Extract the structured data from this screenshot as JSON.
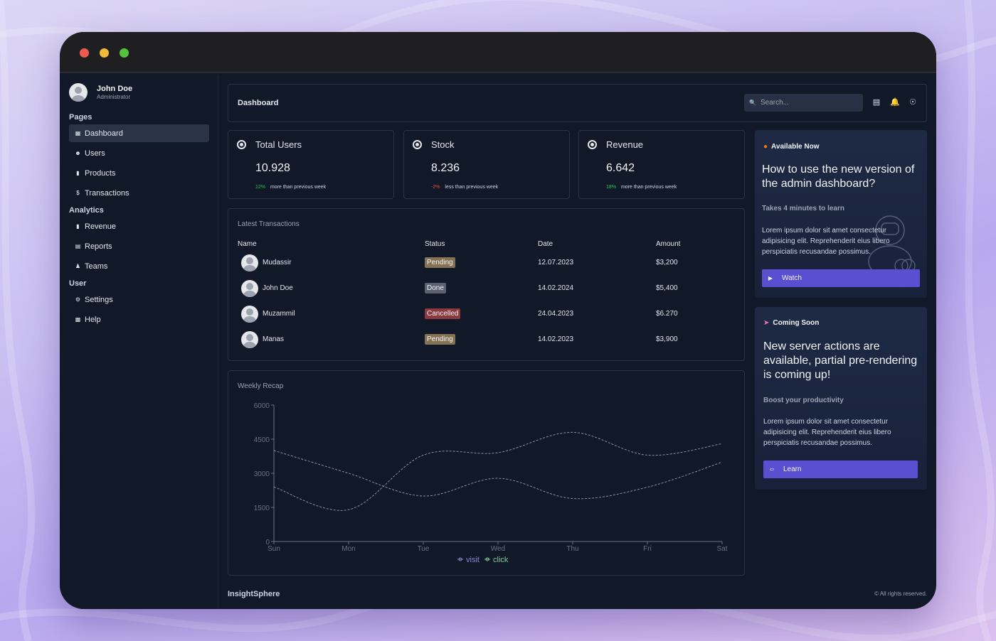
{
  "window": {
    "controls": [
      "close",
      "minimize",
      "maximize"
    ]
  },
  "profile": {
    "name": "John Doe",
    "role": "Administrator"
  },
  "sidebar": {
    "sections": [
      {
        "label": "Pages"
      },
      {
        "label": "Analytics"
      },
      {
        "label": "User"
      }
    ],
    "items": [
      {
        "label": "Dashboard",
        "icon": "grid-icon",
        "active": true
      },
      {
        "label": "Users",
        "icon": "user-circle-icon"
      },
      {
        "label": "Products",
        "icon": "bag-icon"
      },
      {
        "label": "Transactions",
        "icon": "dollar-icon"
      },
      {
        "label": "Revenue",
        "icon": "briefcase-icon"
      },
      {
        "label": "Reports",
        "icon": "report-icon"
      },
      {
        "label": "Teams",
        "icon": "people-icon"
      },
      {
        "label": "Settings",
        "icon": "gear-icon"
      },
      {
        "label": "Help",
        "icon": "question-icon"
      }
    ]
  },
  "topbar": {
    "title": "Dashboard",
    "search_placeholder": "Search...",
    "icons": [
      "message-icon",
      "bell-icon",
      "globe-icon"
    ]
  },
  "stats": [
    {
      "title": "Total Users",
      "value": "10.928",
      "pct": "12%",
      "note": "more than previous week",
      "trend": "up"
    },
    {
      "title": "Stock",
      "value": "8.236",
      "pct": "-2%",
      "note": "less than previous week",
      "trend": "down"
    },
    {
      "title": "Revenue",
      "value": "6.642",
      "pct": "18%",
      "note": "more than previous week",
      "trend": "up"
    }
  ],
  "transactions": {
    "title": "Latest Transactions",
    "columns": [
      "Name",
      "Status",
      "Date",
      "Amount"
    ],
    "rows": [
      {
        "name": "Mudassir",
        "status": "Pending",
        "date": "12.07.2023",
        "amount": "$3,200"
      },
      {
        "name": "John Doe",
        "status": "Done",
        "date": "14.02.2024",
        "amount": "$5,400"
      },
      {
        "name": "Muzammil",
        "status": "Cancelled",
        "date": "24.04.2023",
        "amount": "$6.270"
      },
      {
        "name": "Manas",
        "status": "Pending",
        "date": "14.02.2023",
        "amount": "$3,900"
      }
    ]
  },
  "chart_data": {
    "type": "line",
    "title": "Weekly Recap",
    "categories": [
      "Sun",
      "Mon",
      "Tue",
      "Wed",
      "Thu",
      "Fri",
      "Sat"
    ],
    "ylim": [
      0,
      6000
    ],
    "yticks": [
      "6000",
      "4500",
      "3000",
      "1500",
      "0"
    ],
    "series": [
      {
        "name": "visit",
        "values": [
          4000,
          3000,
          2000,
          2780,
          1890,
          2390,
          3490
        ],
        "color": "#8884d8"
      },
      {
        "name": "click",
        "values": [
          2400,
          1398,
          3800,
          3908,
          4800,
          3800,
          4300
        ],
        "color": "#82ca9d"
      }
    ],
    "legend": "bottom"
  },
  "promos": [
    {
      "tag": "Available Now",
      "tag_icon": "flame-icon",
      "heading": "How to use the new version of the admin dashboard?",
      "sub": "Takes 4 minutes to learn",
      "body": "Lorem ipsum dolor sit amet consectetur adipisicing elit. Reprehenderit eius libero perspiciatis recusandae possimus.",
      "button": "Watch",
      "button_icon": "play-icon"
    },
    {
      "tag": "Coming Soon",
      "tag_icon": "rocket-icon",
      "heading": "New server actions are available, partial pre-rendering is coming up!",
      "sub": "Boost your productivity",
      "body": "Lorem ipsum dolor sit amet consectetur adipisicing elit. Reprehenderit eius libero perspiciatis recusandae possimus.",
      "button": "Learn",
      "button_icon": "arrow-icon"
    }
  ],
  "footer": {
    "brand": "InsightSphere",
    "copyright": "© All rights reserved."
  }
}
